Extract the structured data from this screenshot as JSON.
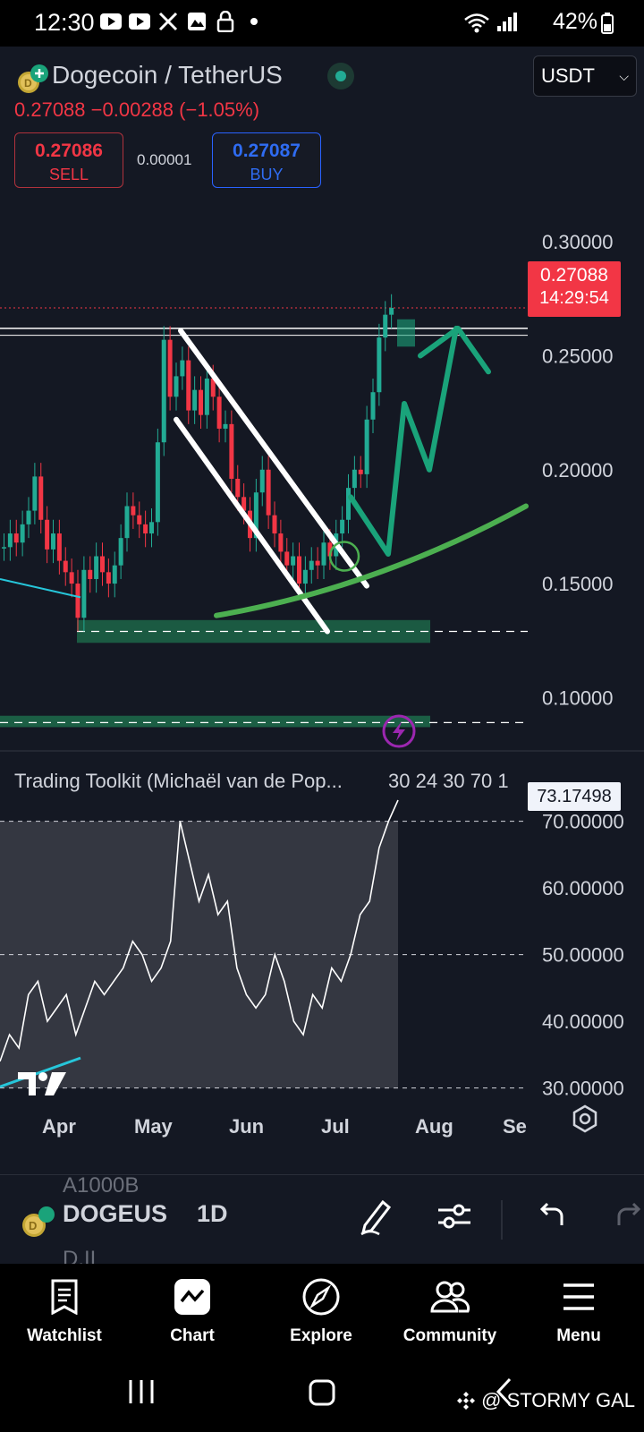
{
  "status": {
    "time": "12:30",
    "battery": "42%",
    "notification_icons": [
      "youtube-icon",
      "youtube-icon",
      "x-icon",
      "gallery-icon",
      "lock-icon",
      "dot-icon"
    ]
  },
  "header": {
    "pair_title": "Dogecoin / TetherUS",
    "currency": "USDT",
    "last_price": "0.27088",
    "change": "−0.00288 (−1.05%)",
    "sell_price": "0.27086",
    "sell_label": "SELL",
    "spread": "0.00001",
    "buy_price": "0.27087",
    "buy_label": "BUY"
  },
  "price_tag": {
    "price": "0.27088",
    "countdown": "14:29:54"
  },
  "indicator": {
    "title": "Trading Toolkit (Michaël van de Pop...",
    "params": "30 24 30 70 1",
    "current_value": "73.17498"
  },
  "chart_data": [
    {
      "type": "line",
      "title": "Dogecoin / TetherUS",
      "series": [
        {
          "values": [
            0.166,
            0.172,
            0.168,
            0.176,
            0.182,
            0.197,
            0.178,
            0.165,
            0.172,
            0.16,
            0.155,
            0.15,
            0.135,
            0.156,
            0.152,
            0.162,
            0.155,
            0.15,
            0.158,
            0.17,
            0.184,
            0.18,
            0.176,
            0.172,
            0.177,
            0.212,
            0.257,
            0.232,
            0.241,
            0.248,
            0.226,
            0.235,
            0.224,
            0.24,
            0.232,
            0.218,
            0.22,
            0.196,
            0.188,
            0.182,
            0.17,
            0.19,
            0.2,
            0.18,
            0.172,
            0.164,
            0.158,
            0.162,
            0.15,
            0.156,
            0.16,
            0.158,
            0.168,
            0.162,
            0.172,
            0.178,
            0.192,
            0.2,
            0.198,
            0.222,
            0.234,
            0.258,
            0.268,
            0.271
          ]
        }
      ],
      "y_ticks": [
        "0.30000",
        "0.25000",
        "0.20000",
        "0.15000",
        "0.10000"
      ],
      "x_ticks": [
        "Apr",
        "May",
        "Jun",
        "Jul",
        "Aug",
        "Se"
      ],
      "ylim": [
        0.075,
        0.315
      ]
    },
    {
      "type": "line",
      "title": "Trading Toolkit (Michaël van de Pop...",
      "series": [
        {
          "values": [
            34,
            38,
            36,
            44,
            46,
            40,
            42,
            44,
            38,
            42,
            46,
            44,
            46,
            48,
            52,
            50,
            46,
            48,
            52,
            70,
            64,
            58,
            62,
            56,
            58,
            48,
            44,
            42,
            44,
            50,
            46,
            40,
            38,
            44,
            42,
            48,
            46,
            50,
            56,
            58,
            66,
            70,
            73.17
          ]
        }
      ],
      "y_ticks": [
        "70.00000",
        "60.00000",
        "50.00000",
        "40.00000",
        "30.00000"
      ],
      "ylim": [
        27,
        78
      ]
    }
  ],
  "toolbar": {
    "symbol": "DOGEUS",
    "timeframe": "1D",
    "ghost_top": "A1000B",
    "ghost_bottom": "D.II"
  },
  "nav": {
    "items": [
      {
        "label": "Watchlist",
        "icon": "watchlist-icon"
      },
      {
        "label": "Chart",
        "icon": "chart-icon"
      },
      {
        "label": "Explore",
        "icon": "compass-icon"
      },
      {
        "label": "Community",
        "icon": "community-icon"
      },
      {
        "label": "Menu",
        "icon": "menu-icon"
      }
    ]
  },
  "watermark": "@ STORMY GAL",
  "colors": {
    "bg": "#141823",
    "up": "#22ab94",
    "down": "#f23645",
    "accent_green": "#4caf50",
    "drawing_teal": "#1aa37a"
  }
}
